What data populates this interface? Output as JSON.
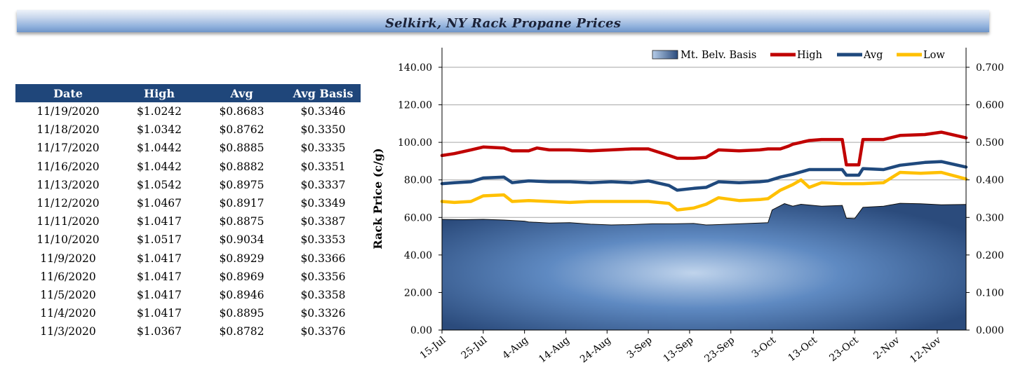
{
  "header": {
    "title": "Selkirk, NY Rack Propane Prices"
  },
  "table": {
    "columns": [
      "Date",
      "High",
      "Avg",
      "Avg Basis"
    ],
    "rows": [
      [
        "11/19/2020",
        "$1.0242",
        "$0.8683",
        "$0.3346"
      ],
      [
        "11/18/2020",
        "$1.0342",
        "$0.8762",
        "$0.3350"
      ],
      [
        "11/17/2020",
        "$1.0442",
        "$0.8885",
        "$0.3335"
      ],
      [
        "11/16/2020",
        "$1.0442",
        "$0.8882",
        "$0.3351"
      ],
      [
        "11/13/2020",
        "$1.0542",
        "$0.8975",
        "$0.3337"
      ],
      [
        "11/12/2020",
        "$1.0467",
        "$0.8917",
        "$0.3349"
      ],
      [
        "11/11/2020",
        "$1.0417",
        "$0.8875",
        "$0.3387"
      ],
      [
        "11/10/2020",
        "$1.0517",
        "$0.9034",
        "$0.3353"
      ],
      [
        "11/9/2020",
        "$1.0417",
        "$0.8929",
        "$0.3366"
      ],
      [
        "11/6/2020",
        "$1.0417",
        "$0.8969",
        "$0.3356"
      ],
      [
        "11/5/2020",
        "$1.0417",
        "$0.8946",
        "$0.3358"
      ],
      [
        "11/4/2020",
        "$1.0417",
        "$0.8895",
        "$0.3326"
      ],
      [
        "11/3/2020",
        "$1.0367",
        "$0.8782",
        "$0.3376"
      ]
    ]
  },
  "chart_data": {
    "type": "line",
    "title": "",
    "xlabel": "",
    "ylabel": "Rack Price (c/g)",
    "ylim": [
      0,
      140
    ],
    "y_ticks": [
      "0.00",
      "20.00",
      "40.00",
      "60.00",
      "80.00",
      "100.00",
      "120.00",
      "140.00"
    ],
    "y2lim": [
      0,
      0.7
    ],
    "y2_ticks": [
      "0.000",
      "0.100",
      "0.200",
      "0.300",
      "0.400",
      "0.500",
      "0.600",
      "0.700"
    ],
    "x_tick_labels": [
      "15-Jul",
      "25-Jul",
      "4-Aug",
      "14-Aug",
      "24-Aug",
      "3-Sep",
      "13-Sep",
      "23-Sep",
      "3-Oct",
      "13-Oct",
      "23-Oct",
      "2-Nov",
      "12-Nov"
    ],
    "x_range": [
      "2020-07-15",
      "2020-11-19"
    ],
    "grid": "horizontal",
    "legend_position": "top-right",
    "colors": {
      "basis": "#2a4d80",
      "high": "#c00000",
      "avg": "#1f497d",
      "low": "#ffc000"
    },
    "series": [
      {
        "name": "Mt. Belv. Basis",
        "type": "area",
        "axis": "right",
        "x": [
          "2020-07-15",
          "2020-07-20",
          "2020-07-25",
          "2020-07-30",
          "2020-08-04",
          "2020-08-05",
          "2020-08-10",
          "2020-08-15",
          "2020-08-20",
          "2020-08-25",
          "2020-08-30",
          "2020-09-04",
          "2020-09-09",
          "2020-09-14",
          "2020-09-17",
          "2020-09-20",
          "2020-09-25",
          "2020-09-30",
          "2020-10-02",
          "2020-10-03",
          "2020-10-06",
          "2020-10-08",
          "2020-10-10",
          "2020-10-15",
          "2020-10-20",
          "2020-10-21",
          "2020-10-23",
          "2020-10-25",
          "2020-10-30",
          "2020-11-03",
          "2020-11-08",
          "2020-11-13",
          "2020-11-19"
        ],
        "values": [
          0.295,
          0.294,
          0.295,
          0.293,
          0.29,
          0.288,
          0.285,
          0.286,
          0.282,
          0.28,
          0.281,
          0.283,
          0.283,
          0.284,
          0.28,
          0.281,
          0.283,
          0.285,
          0.286,
          0.32,
          0.337,
          0.33,
          0.335,
          0.33,
          0.332,
          0.298,
          0.297,
          0.327,
          0.33,
          0.3376,
          0.3366,
          0.3337,
          0.3346
        ]
      },
      {
        "name": "High",
        "axis": "left",
        "x": [
          "2020-07-15",
          "2020-07-18",
          "2020-07-22",
          "2020-07-25",
          "2020-07-30",
          "2020-08-01",
          "2020-08-05",
          "2020-08-07",
          "2020-08-10",
          "2020-08-15",
          "2020-08-20",
          "2020-08-25",
          "2020-08-30",
          "2020-09-03",
          "2020-09-08",
          "2020-09-10",
          "2020-09-14",
          "2020-09-17",
          "2020-09-20",
          "2020-09-25",
          "2020-09-30",
          "2020-10-02",
          "2020-10-05",
          "2020-10-07",
          "2020-10-08",
          "2020-10-12",
          "2020-10-15",
          "2020-10-20",
          "2020-10-21",
          "2020-10-24",
          "2020-10-25",
          "2020-10-30",
          "2020-11-03",
          "2020-11-09",
          "2020-11-13",
          "2020-11-19"
        ],
        "values": [
          93,
          94,
          96,
          97.5,
          97,
          95.5,
          95.5,
          97,
          96,
          96,
          95.5,
          96,
          96.5,
          96.5,
          93,
          91.5,
          91.5,
          92,
          96,
          95.5,
          96,
          96.5,
          96.5,
          98,
          99,
          101,
          101.5,
          101.5,
          88,
          88,
          101.5,
          101.5,
          103.67,
          104.17,
          105.42,
          102.42
        ]
      },
      {
        "name": "Avg",
        "axis": "left",
        "x": [
          "2020-07-15",
          "2020-07-18",
          "2020-07-22",
          "2020-07-25",
          "2020-07-30",
          "2020-08-01",
          "2020-08-05",
          "2020-08-10",
          "2020-08-15",
          "2020-08-20",
          "2020-08-25",
          "2020-08-30",
          "2020-09-03",
          "2020-09-08",
          "2020-09-10",
          "2020-09-14",
          "2020-09-17",
          "2020-09-20",
          "2020-09-25",
          "2020-09-30",
          "2020-10-02",
          "2020-10-05",
          "2020-10-08",
          "2020-10-12",
          "2020-10-15",
          "2020-10-20",
          "2020-10-21",
          "2020-10-24",
          "2020-10-25",
          "2020-10-30",
          "2020-11-03",
          "2020-11-09",
          "2020-11-13",
          "2020-11-19"
        ],
        "values": [
          78,
          78.5,
          79,
          81,
          81.5,
          78.5,
          79.5,
          79,
          79,
          78.5,
          79,
          78.5,
          79.5,
          77,
          74.5,
          75.5,
          76,
          79,
          78.5,
          79,
          79.5,
          81.5,
          83,
          85.5,
          85.5,
          85.5,
          82.5,
          82.5,
          86,
          85.5,
          87.82,
          89.29,
          89.75,
          86.83
        ]
      },
      {
        "name": "Low",
        "axis": "left",
        "x": [
          "2020-07-15",
          "2020-07-18",
          "2020-07-22",
          "2020-07-25",
          "2020-07-30",
          "2020-08-01",
          "2020-08-05",
          "2020-08-10",
          "2020-08-15",
          "2020-08-20",
          "2020-08-25",
          "2020-08-30",
          "2020-09-03",
          "2020-09-08",
          "2020-09-10",
          "2020-09-14",
          "2020-09-17",
          "2020-09-20",
          "2020-09-25",
          "2020-09-30",
          "2020-10-02",
          "2020-10-05",
          "2020-10-08",
          "2020-10-10",
          "2020-10-12",
          "2020-10-15",
          "2020-10-20",
          "2020-10-25",
          "2020-10-30",
          "2020-11-03",
          "2020-11-08",
          "2020-11-13",
          "2020-11-19"
        ],
        "values": [
          68.5,
          68,
          68.5,
          71.5,
          72,
          68.5,
          69,
          68.5,
          68,
          68.5,
          68.5,
          68.5,
          68.5,
          67.5,
          64,
          65,
          67,
          70.5,
          69,
          69.5,
          70,
          74.5,
          77.5,
          80,
          76,
          78.5,
          78,
          78,
          78.5,
          84,
          83.5,
          84,
          80.5
        ]
      }
    ]
  }
}
